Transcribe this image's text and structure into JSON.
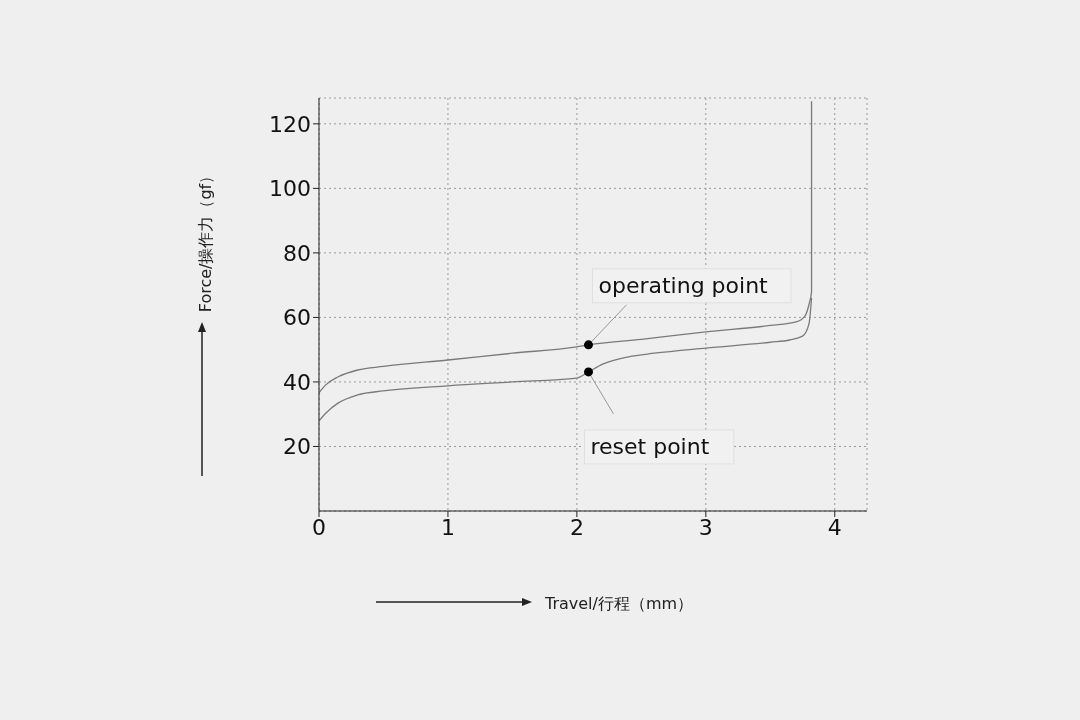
{
  "chart_data": {
    "type": "line",
    "xlabel": "Travel/行程（mm）",
    "ylabel": "Force/操作力（gf）",
    "xlim": [
      0,
      4.25
    ],
    "ylim": [
      0,
      128
    ],
    "xticks": [
      0,
      1,
      2,
      3,
      4
    ],
    "yticks": [
      20,
      40,
      60,
      80,
      100,
      120
    ],
    "grid": true,
    "legend": false,
    "marker": "none",
    "line_style": "solid",
    "series": [
      {
        "color": "#7a7a7a",
        "x": [
          0,
          0.05,
          0.15,
          0.3,
          0.5,
          1,
          1.5,
          2,
          2.09,
          2.5,
          3,
          3.5,
          3.7,
          3.77,
          3.8,
          3.82,
          3.82
        ],
        "values": [
          36.6,
          39,
          41.6,
          43.7,
          44.8,
          46.8,
          48.9,
          50.9,
          51.5,
          53.2,
          55.5,
          57.5,
          58.6,
          60.5,
          64,
          68,
          127
        ]
      },
      {
        "color": "#7a7a7a",
        "x": [
          0,
          0.05,
          0.15,
          0.3,
          0.5,
          1,
          1.5,
          2,
          2.09,
          2.2,
          2.4,
          2.6,
          3,
          3.5,
          3.65,
          3.75,
          3.8,
          3.82
        ],
        "values": [
          27.9,
          30.2,
          33.5,
          36,
          37.2,
          38.8,
          40,
          41.2,
          43.1,
          45.5,
          47.8,
          48.9,
          50.5,
          52.3,
          53,
          54.2,
          58,
          66
        ]
      }
    ],
    "annotations": [
      {
        "text": "operating point",
        "x": 2.09,
        "y": 51.5
      },
      {
        "text": "reset point",
        "x": 2.09,
        "y": 43.1
      }
    ]
  }
}
